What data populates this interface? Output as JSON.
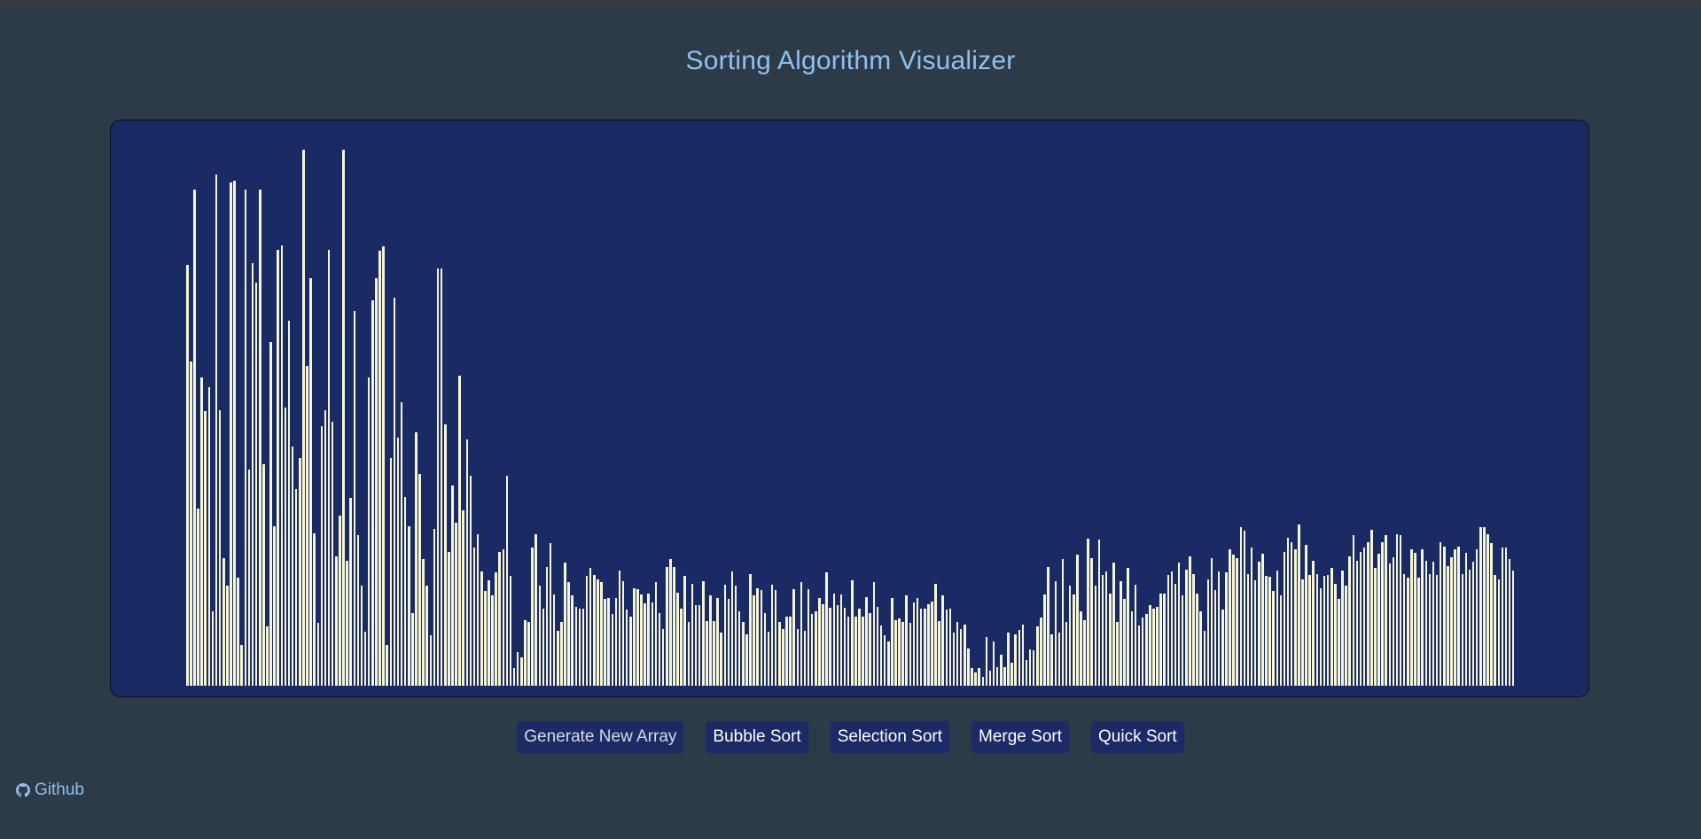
{
  "page": {
    "title": "Sorting Algorithm Visualizer"
  },
  "controls": {
    "generate_label": "Generate New Array",
    "bubble_label": "Bubble Sort",
    "selection_label": "Selection Sort",
    "merge_label": "Merge Sort",
    "quick_label": "Quick Sort"
  },
  "footer": {
    "github_label": "Github",
    "github_icon": "github-icon"
  },
  "colors": {
    "background": "#2d3a48",
    "panel": "#1a2a64",
    "bar": "#f6f5d6",
    "title": "#8ec1f0",
    "button": "#1c2a66"
  },
  "array": {
    "max_value": 500,
    "values": [
      383,
      295,
      452,
      161,
      281,
      250,
      272,
      68,
      465,
      251,
      116,
      91,
      458,
      460,
      98,
      37,
      452,
      197,
      385,
      367,
      452,
      202,
      54,
      313,
      145,
      397,
      401,
      253,
      332,
      218,
      179,
      207,
      488,
      291,
      371,
      139,
      57,
      236,
      251,
      397,
      240,
      118,
      155,
      488,
      114,
      171,
      341,
      137,
      91,
      49,
      281,
      351,
      371,
      396,
      400,
      37,
      207,
      353,
      226,
      258,
      172,
      145,
      66,
      231,
      193,
      115,
      91,
      46,
      143,
      380,
      380,
      238,
      122,
      182,
      148,
      282,
      160,
      224,
      191,
      126,
      138,
      104,
      86,
      96,
      82,
      103,
      122,
      124,
      191,
      100,
      16,
      31,
      26,
      60,
      58,
      126,
      138,
      91,
      70,
      108,
      130,
      83,
      50,
      58,
      112,
      94,
      82,
      72,
      70,
      70,
      100,
      107,
      101,
      97,
      94,
      79,
      80,
      65,
      80,
      105,
      95,
      69,
      63,
      89,
      88,
      83,
      75,
      84,
      76,
      94,
      66,
      52,
      108,
      115,
      108,
      85,
      70,
      100,
      58,
      93,
      73,
      73,
      95,
      59,
      82,
      59,
      80,
      48,
      92,
      79,
      104,
      91,
      68,
      58,
      47,
      102,
      82,
      89,
      87,
      66,
      49,
      92,
      87,
      58,
      52,
      63,
      63,
      88,
      52,
      94,
      50,
      88,
      65,
      68,
      80,
      74,
      103,
      71,
      84,
      73,
      83,
      71,
      63,
      96,
      63,
      70,
      63,
      81,
      66,
      94,
      72,
      55,
      46,
      40,
      80,
      60,
      61,
      58,
      82,
      57,
      76,
      80,
      70,
      70,
      74,
      77,
      93,
      59,
      82,
      69,
      70,
      48,
      58,
      52,
      56,
      34,
      16,
      12,
      16,
      8,
      44,
      14,
      40,
      17,
      28,
      17,
      48,
      21,
      47,
      51,
      56,
      23,
      33,
      32,
      54,
      62,
      83,
      108,
      47,
      95,
      48,
      115,
      58,
      91,
      83,
      119,
      68,
      60,
      134,
      116,
      91,
      133,
      101,
      104,
      84,
      112,
      58,
      95,
      79,
      107,
      68,
      92,
      55,
      62,
      65,
      73,
      70,
      72,
      84,
      84,
      101,
      104,
      93,
      112,
      82,
      106,
      118,
      102,
      84,
      68,
      50,
      97,
      116,
      87,
      104,
      69,
      103,
      124,
      119,
      116,
      144,
      141,
      102,
      126,
      96,
      113,
      120,
      100,
      99,
      86,
      105,
      82,
      122,
      135,
      131,
      124,
      147,
      97,
      128,
      101,
      114,
      102,
      89,
      100,
      101,
      107,
      93,
      79,
      105,
      91,
      118,
      137,
      114,
      122,
      126,
      131,
      142,
      107,
      120,
      131,
      137,
      111,
      117,
      138,
      137,
      102,
      98,
      124,
      121,
      98,
      124,
      114,
      102,
      113,
      101,
      131,
      127,
      109,
      117,
      124,
      127,
      102,
      121,
      106,
      113,
      124,
      144,
      144,
      138,
      130,
      101,
      97,
      126,
      126,
      115,
      105
    ]
  }
}
